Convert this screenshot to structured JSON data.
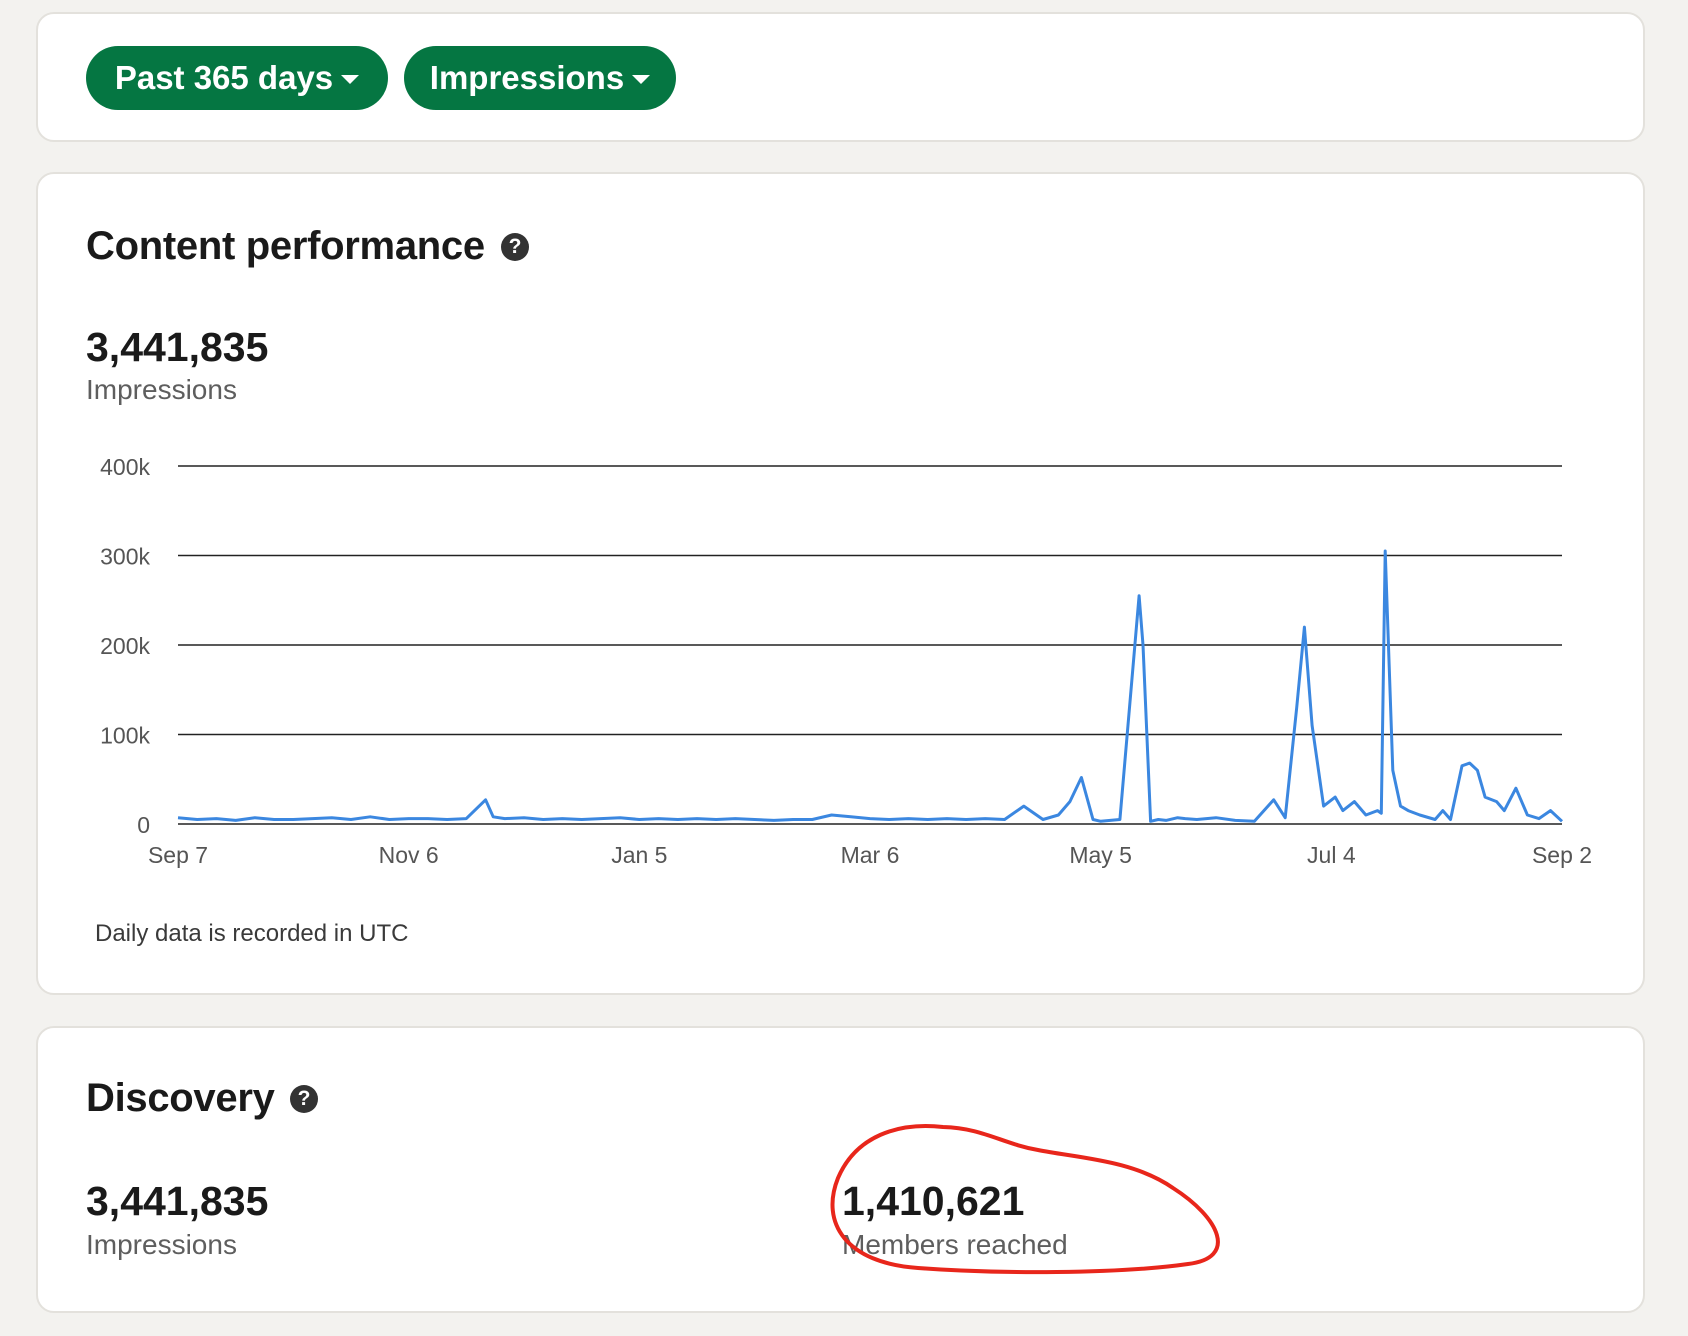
{
  "filters": {
    "range_label": "Past 365 days",
    "metric_label": "Impressions"
  },
  "content_performance": {
    "title": "Content performance",
    "help_icon": "question-circle-icon",
    "total_value": "3,441,835",
    "total_label": "Impressions",
    "note": "Daily data is recorded in UTC"
  },
  "discovery": {
    "title": "Discovery",
    "help_icon": "question-circle-icon",
    "impressions_value": "3,441,835",
    "impressions_label": "Impressions",
    "members_value": "1,410,621",
    "members_label": "Members reached",
    "annotation_color": "#e8261b"
  },
  "colors": {
    "accent": "#057642",
    "line": "#3b87e0"
  },
  "chart_data": {
    "type": "line",
    "title": "",
    "xlabel": "",
    "ylabel": "",
    "ylim": [
      0,
      400000
    ],
    "yticks": [
      0,
      100000,
      200000,
      300000,
      400000
    ],
    "ytick_labels": [
      "0",
      "100k",
      "200k",
      "300k",
      "400k"
    ],
    "xticks": [
      "Sep 7",
      "Nov 6",
      "Jan 5",
      "Mar 6",
      "May 5",
      "Jul 4",
      "Sep 2"
    ],
    "grid": true,
    "series": [
      {
        "x": [
          0,
          5,
          10,
          15,
          20,
          25,
          30,
          35,
          40,
          45,
          50,
          55,
          60,
          65,
          70,
          75,
          80,
          82,
          85,
          90,
          95,
          100,
          105,
          110,
          115,
          120,
          125,
          130,
          135,
          140,
          145,
          150,
          155,
          160,
          165,
          170,
          175,
          180,
          185,
          190,
          195,
          200,
          205,
          210,
          215,
          220,
          225,
          229,
          232,
          235,
          238,
          240,
          245,
          250,
          251,
          253,
          255,
          257,
          260,
          262,
          265,
          270,
          275,
          280,
          285,
          288,
          291,
          293,
          295,
          298,
          301,
          303,
          306,
          309,
          312,
          313,
          314,
          316,
          318,
          320,
          323,
          327,
          329,
          331,
          334,
          336,
          338,
          340,
          343,
          345,
          348,
          351,
          354,
          357,
          360
        ],
        "values": [
          7000,
          5000,
          6000,
          4000,
          7000,
          5000,
          5000,
          6000,
          7000,
          5000,
          8000,
          5000,
          6000,
          6000,
          5000,
          6000,
          27000,
          8000,
          6000,
          7000,
          5000,
          6000,
          5000,
          6000,
          7000,
          5000,
          6000,
          5000,
          6000,
          5000,
          6000,
          5000,
          4000,
          5000,
          5000,
          10000,
          8000,
          6000,
          5000,
          6000,
          5000,
          6000,
          5000,
          6000,
          5000,
          20000,
          5000,
          10000,
          25000,
          52000,
          5000,
          3000,
          5000,
          255000,
          200000,
          3000,
          5000,
          4000,
          7000,
          6000,
          5000,
          7000,
          4000,
          3000,
          27000,
          7000,
          130000,
          220000,
          110000,
          20000,
          30000,
          15000,
          25000,
          10000,
          15000,
          12000,
          305000,
          60000,
          20000,
          15000,
          10000,
          5000,
          15000,
          5000,
          65000,
          68000,
          60000,
          30000,
          25000,
          15000,
          40000,
          10000,
          6000,
          15000,
          3000
        ]
      }
    ]
  }
}
